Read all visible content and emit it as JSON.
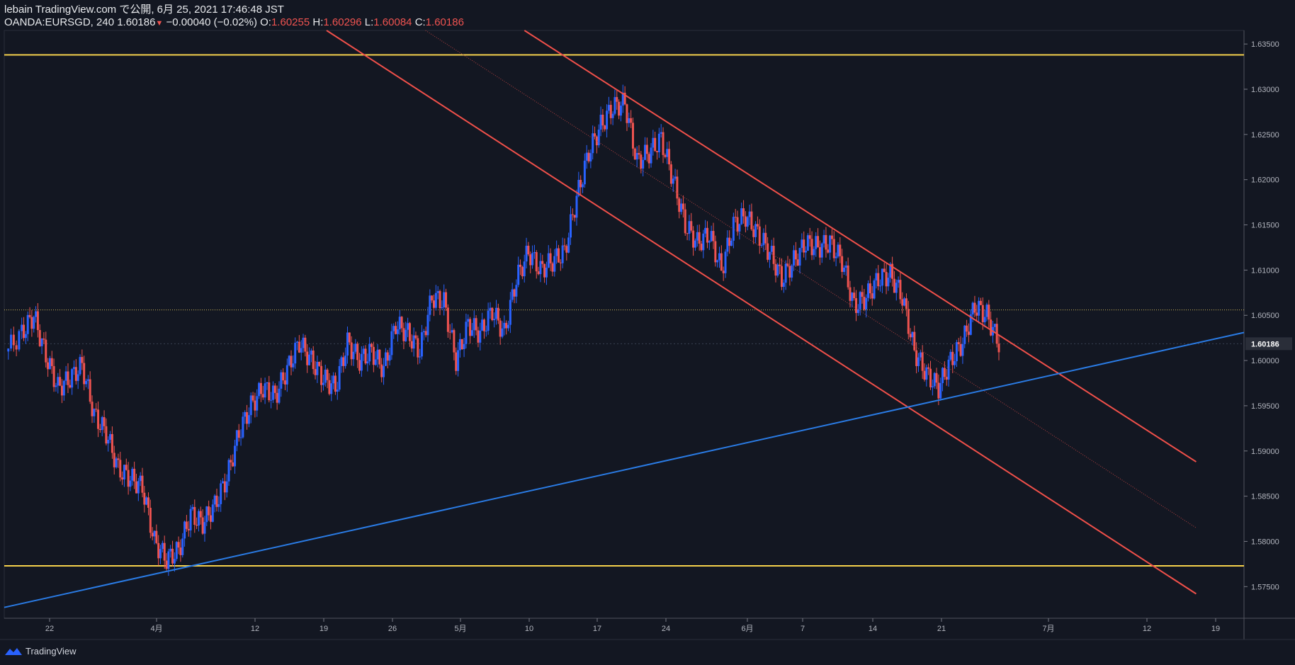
{
  "header": {
    "publisher_line": "lebain TradingView.com で公開, 6月 25, 2021 17:46:48 JST",
    "symbol": "OANDA:EURSGD, 240",
    "last_price": "1.60186",
    "change": "−0.00040 (−0.02%)",
    "o_label": "O:",
    "o_value": "1.60255",
    "h_label": "H:",
    "h_value": "1.60296",
    "l_label": "L:",
    "l_value": "1.60084",
    "c_label": "C:",
    "c_value": "1.60186"
  },
  "footer": {
    "brand": "TradingView"
  },
  "colors": {
    "background": "#131722",
    "up": "#2962ff",
    "down": "#ef5350",
    "support_resistance": "#f5d14c",
    "channel": "#f0504a",
    "trendline": "#2a7be4"
  },
  "chart_data": {
    "type": "candlestick",
    "ylim": [
      1.5715,
      1.6365
    ],
    "y_ticks": [
      "1.63500",
      "1.63000",
      "1.62500",
      "1.62000",
      "1.61500",
      "1.61000",
      "1.60500",
      "1.60000",
      "1.59500",
      "1.59000",
      "1.58500",
      "1.58000",
      "1.57500"
    ],
    "last_price_label": "1.60186",
    "x_ticks": [
      "22",
      "4月",
      "12",
      "19",
      "26",
      "5月",
      "10",
      "17",
      "24",
      "6月",
      "7",
      "14",
      "21",
      "7月",
      "12",
      "19"
    ],
    "series_close_path": [
      [
        0,
        1.601
      ],
      [
        8,
        1.603
      ],
      [
        14,
        1.605
      ],
      [
        20,
        1.6005
      ],
      [
        26,
        1.597
      ],
      [
        32,
        1.598
      ],
      [
        38,
        1.5995
      ],
      [
        44,
        1.594
      ],
      [
        50,
        1.592
      ],
      [
        56,
        1.588
      ],
      [
        62,
        1.587
      ],
      [
        68,
        1.586
      ],
      [
        74,
        1.58
      ],
      [
        80,
        1.578
      ],
      [
        86,
        1.579
      ],
      [
        92,
        1.583
      ],
      [
        98,
        1.582
      ],
      [
        104,
        1.584
      ],
      [
        110,
        1.587
      ],
      [
        116,
        1.592
      ],
      [
        122,
        1.595
      ],
      [
        128,
        1.597
      ],
      [
        134,
        1.596
      ],
      [
        140,
        1.599
      ],
      [
        146,
        1.602
      ],
      [
        152,
        1.6
      ],
      [
        158,
        1.598
      ],
      [
        164,
        1.597
      ],
      [
        170,
        1.602
      ],
      [
        176,
        1.6
      ],
      [
        182,
        1.601
      ],
      [
        188,
        1.599
      ],
      [
        194,
        1.604
      ],
      [
        200,
        1.603
      ],
      [
        206,
        1.601
      ],
      [
        212,
        1.607
      ],
      [
        218,
        1.6065
      ],
      [
        224,
        1.6
      ],
      [
        230,
        1.604
      ],
      [
        236,
        1.603
      ],
      [
        242,
        1.6055
      ],
      [
        248,
        1.603
      ],
      [
        254,
        1.609
      ],
      [
        260,
        1.612
      ],
      [
        266,
        1.61
      ],
      [
        272,
        1.611
      ],
      [
        278,
        1.612
      ],
      [
        284,
        1.618
      ],
      [
        290,
        1.623
      ],
      [
        296,
        1.626
      ],
      [
        302,
        1.628
      ],
      [
        308,
        1.6285
      ],
      [
        314,
        1.622
      ],
      [
        320,
        1.623
      ],
      [
        326,
        1.6245
      ],
      [
        332,
        1.62
      ],
      [
        338,
        1.615
      ],
      [
        344,
        1.613
      ],
      [
        350,
        1.614
      ],
      [
        356,
        1.61
      ],
      [
        362,
        1.615
      ],
      [
        368,
        1.616
      ],
      [
        374,
        1.614
      ],
      [
        380,
        1.612
      ],
      [
        386,
        1.609
      ],
      [
        392,
        1.611
      ],
      [
        398,
        1.613
      ],
      [
        404,
        1.6125
      ],
      [
        410,
        1.613
      ],
      [
        416,
        1.611
      ],
      [
        422,
        1.606
      ],
      [
        428,
        1.607
      ],
      [
        434,
        1.609
      ],
      [
        440,
        1.6095
      ],
      [
        446,
        1.607
      ],
      [
        452,
        1.601
      ],
      [
        458,
        1.5985
      ],
      [
        464,
        1.597
      ],
      [
        470,
        1.6
      ],
      [
        476,
        1.602
      ],
      [
        482,
        1.606
      ],
      [
        488,
        1.605
      ],
      [
        494,
        1.6019
      ]
    ],
    "horizontal_lines": [
      {
        "name": "resistance",
        "price": 1.6338
      },
      {
        "name": "support",
        "price": 1.5773
      },
      {
        "name": "dotted-level",
        "price": 1.6056
      }
    ],
    "trendline": {
      "p1": [
        0,
        1.5727
      ],
      "p2": [
        1,
        1.6031
      ]
    },
    "channel": {
      "upper": {
        "p1": [
          0.4196,
          1.6365
        ],
        "p2": [
          0.9614,
          1.5888
        ]
      },
      "lower": {
        "p1": [
          0.26,
          1.6365
        ],
        "p2": [
          0.9614,
          1.5742
        ]
      },
      "mid": {
        "p1": [
          0.3398,
          1.6365
        ],
        "p2": [
          0.9614,
          1.5815
        ]
      }
    }
  }
}
